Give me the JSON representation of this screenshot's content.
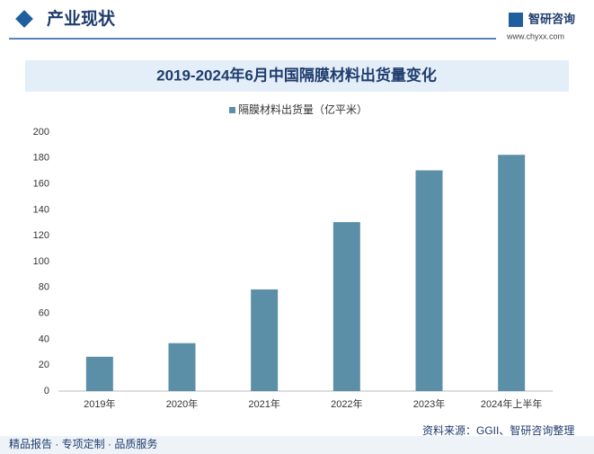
{
  "header": {
    "title": "产业现状",
    "brand": "智研咨询",
    "url": "www.chyxx.com"
  },
  "chart_data": {
    "type": "bar",
    "title": "2019-2024年6月中国隔膜材料出货量变化",
    "categories": [
      "2019年",
      "2020年",
      "2021年",
      "2022年",
      "2023年",
      "2024年上半年"
    ],
    "series": [
      {
        "name": "隔膜材料出货量（亿平米）",
        "color": "#5b8fa8",
        "values": [
          26.5,
          37,
          78.5,
          130.5,
          170.5,
          182.5
        ]
      }
    ],
    "ylim": [
      0,
      200
    ],
    "yticks": [
      0,
      20,
      40,
      60,
      80,
      100,
      120,
      140,
      160,
      180,
      200
    ],
    "grid": false
  },
  "footer": {
    "slogan": "精品报告 · 专项定制 · 品质服务",
    "source": "资料来源：GGII、智研咨询整理"
  }
}
